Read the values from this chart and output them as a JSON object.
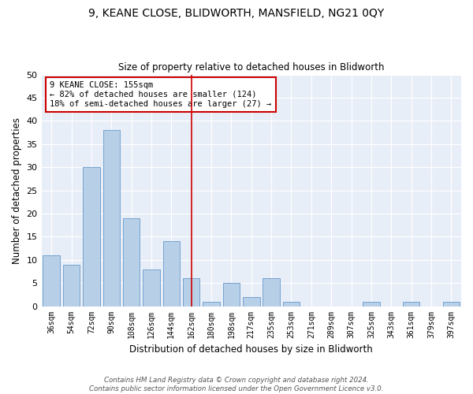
{
  "title1": "9, KEANE CLOSE, BLIDWORTH, MANSFIELD, NG21 0QY",
  "title2": "Size of property relative to detached houses in Blidworth",
  "xlabel": "Distribution of detached houses by size in Blidworth",
  "ylabel": "Number of detached properties",
  "categories": [
    "36sqm",
    "54sqm",
    "72sqm",
    "90sqm",
    "108sqm",
    "126sqm",
    "144sqm",
    "162sqm",
    "180sqm",
    "198sqm",
    "217sqm",
    "235sqm",
    "253sqm",
    "271sqm",
    "289sqm",
    "307sqm",
    "325sqm",
    "343sqm",
    "361sqm",
    "379sqm",
    "397sqm"
  ],
  "values": [
    11,
    9,
    30,
    38,
    19,
    8,
    14,
    6,
    1,
    5,
    2,
    6,
    1,
    0,
    0,
    0,
    1,
    0,
    1,
    0,
    1
  ],
  "bar_color": "#b8cfe8",
  "bar_edge_color": "#6699cc",
  "vline_color": "#cc0000",
  "annotation_text": "9 KEANE CLOSE: 155sqm\n← 82% of detached houses are smaller (124)\n18% of semi-detached houses are larger (27) →",
  "annotation_box_color": "#ffffff",
  "annotation_box_edge_color": "#cc0000",
  "ylim": [
    0,
    50
  ],
  "yticks": [
    0,
    5,
    10,
    15,
    20,
    25,
    30,
    35,
    40,
    45,
    50
  ],
  "footer": "Contains HM Land Registry data © Crown copyright and database right 2024.\nContains public sector information licensed under the Open Government Licence v3.0.",
  "plot_bg_color": "#e8eef8"
}
